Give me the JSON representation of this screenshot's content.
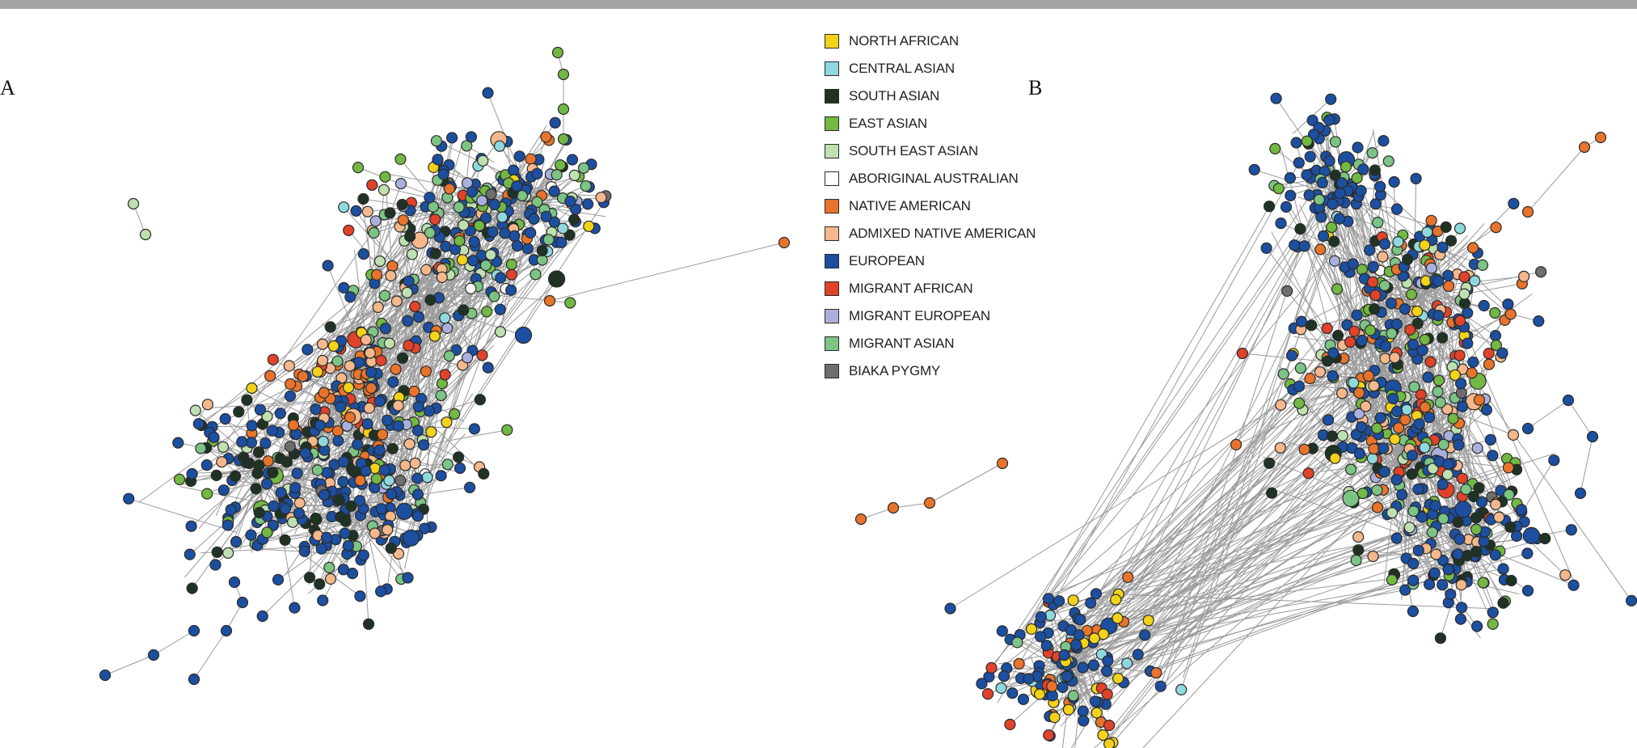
{
  "figure": {
    "panels": [
      {
        "id": "a",
        "label": "A"
      },
      {
        "id": "b",
        "label": "B"
      }
    ],
    "legend": [
      {
        "name": "NORTH AFRICAN",
        "color": "#f2d21b"
      },
      {
        "name": "CENTRAL ASIAN",
        "color": "#8fd9de"
      },
      {
        "name": "SOUTH ASIAN",
        "color": "#1f3325"
      },
      {
        "name": "EAST ASIAN",
        "color": "#72b844"
      },
      {
        "name": "SOUTH EAST ASIAN",
        "color": "#bfe0b0"
      },
      {
        "name": "ABORIGINAL AUSTRALIAN",
        "color": "#ffffff"
      },
      {
        "name": "NATIVE AMERICAN",
        "color": "#e8742c"
      },
      {
        "name": "ADMIXED NATIVE AMERICAN",
        "color": "#f4b88c"
      },
      {
        "name": "EUROPEAN",
        "color": "#1c4fa0"
      },
      {
        "name": "MIGRANT AFRICAN",
        "color": "#e0432a"
      },
      {
        "name": "MIGRANT EUROPEAN",
        "color": "#aab0de"
      },
      {
        "name": "MIGRANT ASIAN",
        "color": "#7cc485"
      },
      {
        "name": "BIAKA PYGMY",
        "color": "#6e6e6e"
      }
    ]
  }
}
